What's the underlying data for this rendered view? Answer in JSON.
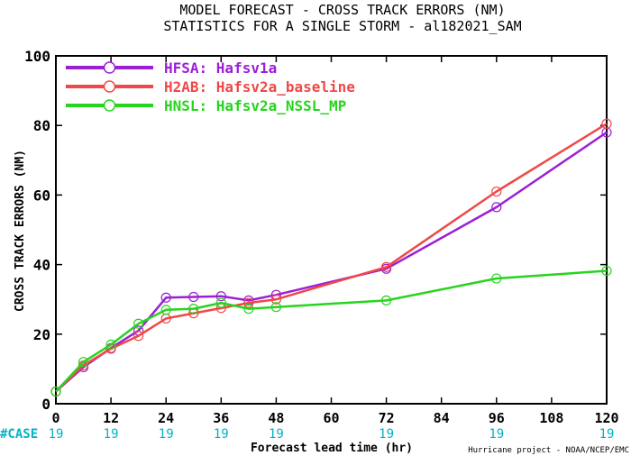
{
  "title_line1": "MODEL FORECAST - CROSS TRACK ERRORS (NM)",
  "title_line2": "STATISTICS FOR A SINGLE STORM - al182021_SAM",
  "credit": "Hurricane project - NOAA/NCEP/EMC",
  "case_label": "#CASE",
  "colors": {
    "axis": "#000000",
    "case": "#00b3c7"
  },
  "chart_data": {
    "type": "line",
    "xlabel": "Forecast lead time (hr)",
    "ylabel": "CROSS TRACK ERRORS (NM)",
    "xlim": [
      0,
      120
    ],
    "ylim": [
      0,
      100
    ],
    "xticks": [
      0,
      12,
      24,
      36,
      48,
      60,
      72,
      84,
      96,
      108,
      120
    ],
    "yticks": [
      0,
      20,
      40,
      60,
      80,
      100
    ],
    "grid": false,
    "legend_position": "top-left",
    "case_counts": [
      {
        "x": 0,
        "n": "19"
      },
      {
        "x": 12,
        "n": "19"
      },
      {
        "x": 24,
        "n": "19"
      },
      {
        "x": 36,
        "n": "19"
      },
      {
        "x": 48,
        "n": "19"
      },
      {
        "x": 72,
        "n": "19"
      },
      {
        "x": 96,
        "n": "19"
      },
      {
        "x": 120,
        "n": "19"
      }
    ],
    "series": [
      {
        "name": "HFSA: Hafsv1a",
        "color": "#9b1fd6",
        "x": [
          0,
          6,
          12,
          18,
          24,
          30,
          36,
          42,
          48,
          72,
          96,
          120
        ],
        "y": [
          3.5,
          10.5,
          16,
          21,
          30.5,
          30.7,
          30.9,
          29.7,
          31.3,
          38.8,
          56.5,
          78
        ]
      },
      {
        "name": "H2AB: Hafsv2a_baseline",
        "color": "#f04848",
        "x": [
          0,
          6,
          12,
          18,
          24,
          30,
          36,
          42,
          48,
          72,
          96,
          120
        ],
        "y": [
          3.5,
          11,
          15.8,
          19.5,
          24.5,
          26,
          27.5,
          29,
          30,
          39.3,
          61,
          80.5
        ]
      },
      {
        "name": "HNSL: Hafsv2a_NSSL_MP",
        "color": "#27d41e",
        "x": [
          0,
          6,
          12,
          18,
          24,
          30,
          36,
          42,
          48,
          72,
          96,
          120
        ],
        "y": [
          3.5,
          12,
          17,
          23,
          27,
          27.3,
          29,
          27.3,
          27.8,
          29.7,
          36,
          38.2
        ]
      }
    ]
  }
}
